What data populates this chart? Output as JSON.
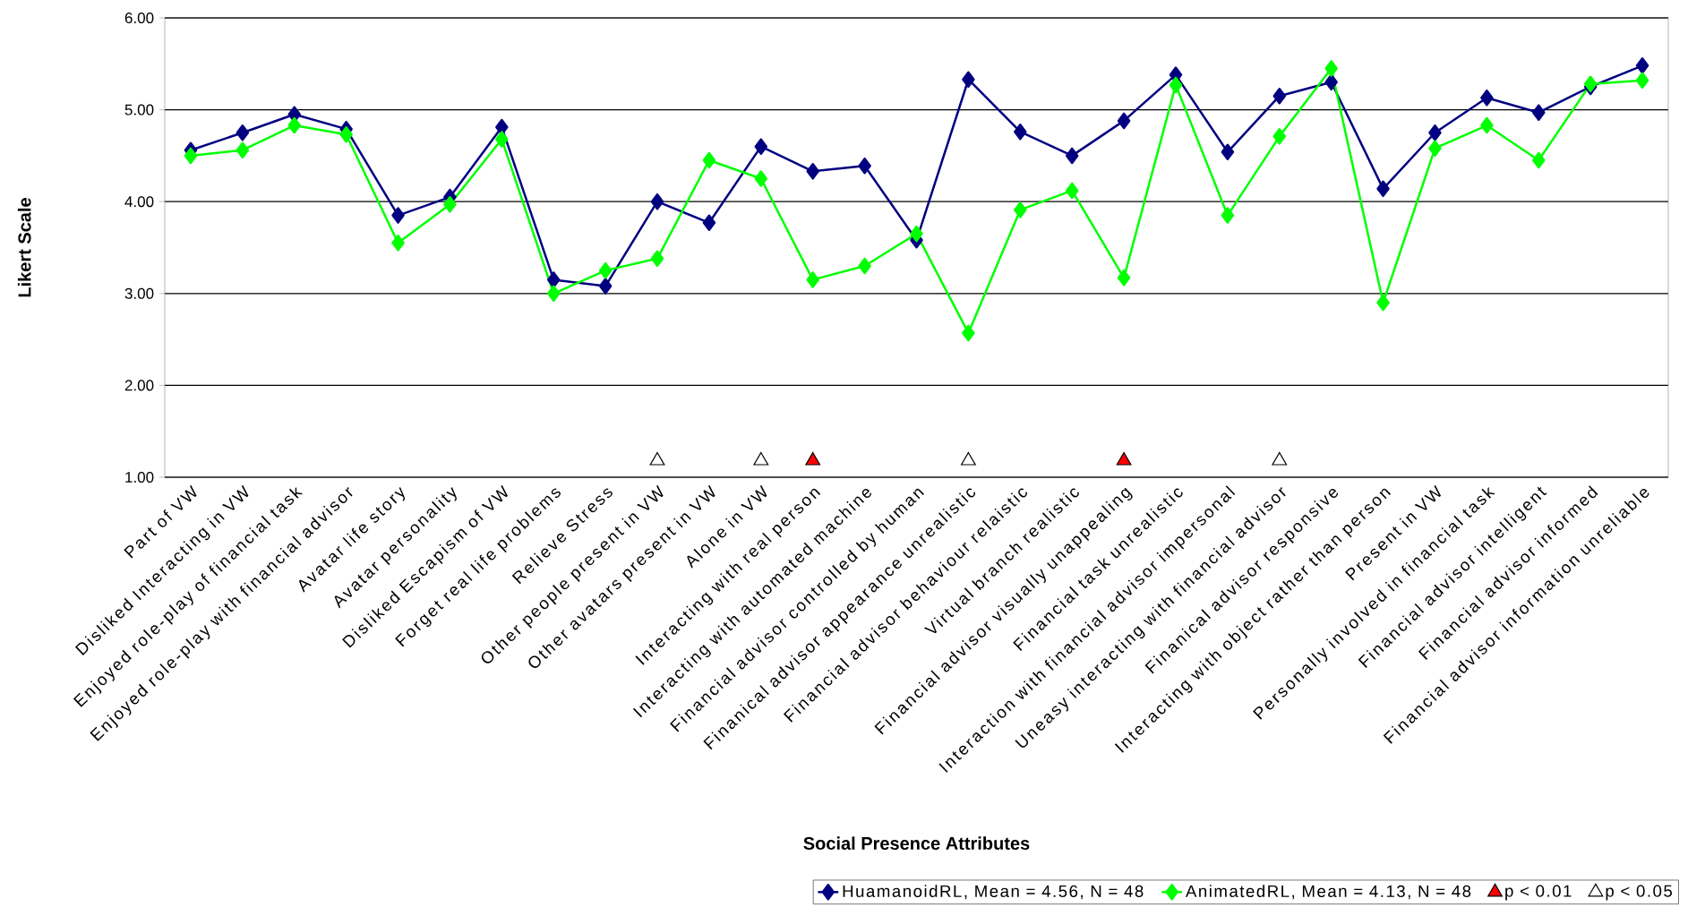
{
  "chart_data": {
    "type": "line",
    "xlabel": "Social Presence Attributes",
    "ylabel": "Likert Scale",
    "categories": [
      "Part of VW",
      "Disliked Interacting in VW",
      "Enjoyed role-play of financial task",
      "Enjoyed role-play with financial advisor",
      "Avatar life story",
      "Avatar personality",
      "Disliked Escapism of VW",
      "Forget real life problems",
      "Relieve Stress",
      "Other people present in VW",
      "Other avatars present in VW",
      "Alone in VW",
      "Interacting with real person",
      "Interacting with automated machine",
      "Financial advisor controlled by human",
      "Finanical advisor appearance unrealistic",
      "Financial advisor behaviour relaistic",
      "Virtual branch realistic",
      "Financial advisor visually unappealing",
      "Financial task unrealistic",
      "Interaction with financial advisor impersonal",
      "Uneasy interacting with financial advisor",
      "Finanical advisor responsive",
      "Interacting with object rather than person",
      "Present in VW",
      "Personally involved in financial task",
      "Financial advisor intelligent",
      "Financial advisor informed",
      "Financial advisor information unreliable"
    ],
    "series": [
      {
        "name": "HuamanoidRL,   Mean = 4.56,   N = 48",
        "marker": "diamond",
        "color": "#000080",
        "values": [
          4.56,
          4.75,
          4.95,
          4.79,
          3.85,
          4.05,
          4.81,
          3.15,
          3.08,
          4.0,
          3.77,
          4.6,
          4.33,
          4.39,
          3.58,
          5.33,
          4.76,
          4.5,
          4.88,
          5.38,
          4.54,
          5.15,
          5.3,
          4.14,
          4.75,
          5.13,
          4.97,
          5.25,
          5.48
        ]
      },
      {
        "name": "AnimatedRL,   Mean = 4.13,   N = 48",
        "marker": "diamond",
        "color": "#00ff00",
        "values": [
          4.5,
          4.56,
          4.83,
          4.73,
          3.55,
          3.97,
          4.68,
          3.0,
          3.25,
          3.38,
          4.45,
          4.25,
          3.15,
          3.3,
          3.65,
          2.57,
          3.91,
          4.12,
          3.17,
          5.27,
          3.85,
          4.71,
          5.45,
          2.9,
          4.58,
          4.83,
          4.45,
          5.28,
          5.32
        ]
      },
      {
        "name": "p < 0.01",
        "type": "scatter",
        "marker": "triangle",
        "color": "#ff0000",
        "values": [
          null,
          null,
          null,
          null,
          null,
          null,
          null,
          null,
          null,
          null,
          null,
          null,
          1.18,
          null,
          null,
          null,
          null,
          null,
          1.18,
          null,
          null,
          null,
          null,
          null,
          null,
          null,
          null,
          null,
          null
        ]
      },
      {
        "name": "p < 0.05",
        "type": "scatter",
        "marker": "triangle",
        "color": "#ffffff",
        "values": [
          null,
          null,
          null,
          null,
          null,
          null,
          null,
          null,
          null,
          1.18,
          null,
          1.18,
          null,
          null,
          null,
          1.18,
          null,
          null,
          null,
          null,
          null,
          1.18,
          null,
          null,
          null,
          null,
          null,
          null,
          null
        ]
      }
    ],
    "ylim": [
      1,
      6
    ],
    "yticks": [
      {
        "value": 1,
        "label": "1.00"
      },
      {
        "value": 2,
        "label": "2.00"
      },
      {
        "value": 3,
        "label": "3.00"
      },
      {
        "value": 4,
        "label": "4.00"
      },
      {
        "value": 5,
        "label": "5.00"
      },
      {
        "value": 6,
        "label": "6.00"
      }
    ],
    "grid": "y",
    "legend": "bottom"
  }
}
